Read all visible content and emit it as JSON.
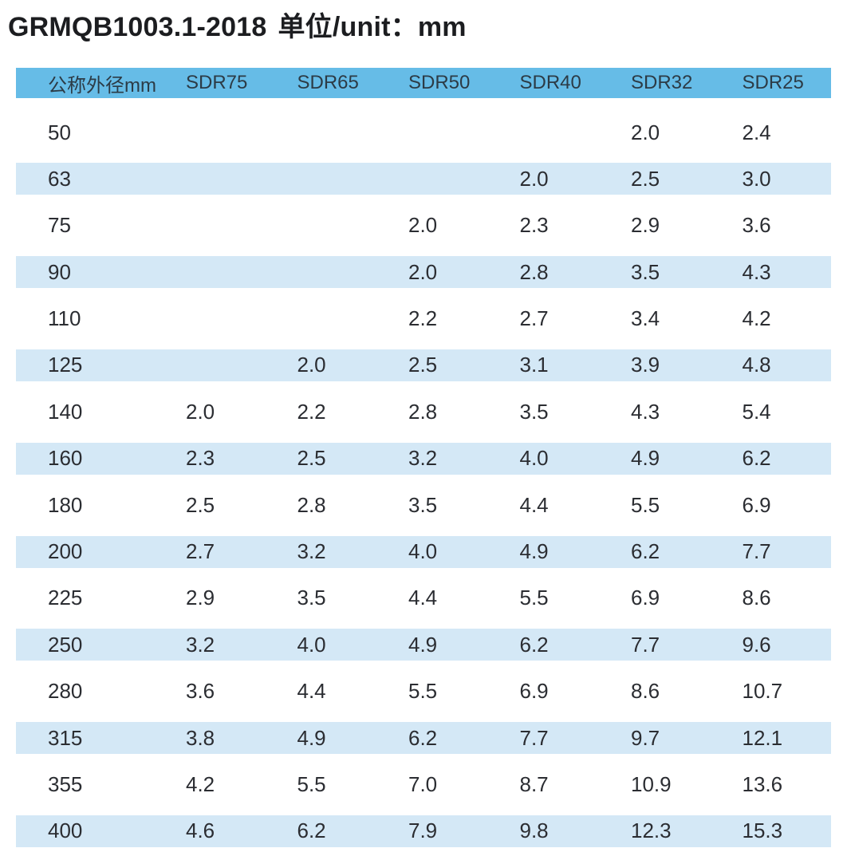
{
  "title": {
    "standard_code": "GRMQB1003.1-2018",
    "unit_label": "单位/unit：mm"
  },
  "colors": {
    "header_bg": "#66bce7",
    "stripe_bg": "#d4e8f6",
    "header_text": "#2c3b46",
    "body_text": "#2b2d32",
    "title_text": "#1c1d20"
  },
  "table": {
    "columns": [
      "公称外径mm",
      "SDR75",
      "SDR65",
      "SDR50",
      "SDR40",
      "SDR32",
      "SDR25"
    ],
    "rows": [
      {
        "dn": "50",
        "values": [
          "",
          "",
          "",
          "",
          "2.0",
          "2.4"
        ]
      },
      {
        "dn": "63",
        "values": [
          "",
          "",
          "",
          "2.0",
          "2.5",
          "3.0"
        ]
      },
      {
        "dn": "75",
        "values": [
          "",
          "",
          "2.0",
          "2.3",
          "2.9",
          "3.6"
        ]
      },
      {
        "dn": "90",
        "values": [
          "",
          "",
          "2.0",
          "2.8",
          "3.5",
          "4.3"
        ]
      },
      {
        "dn": "110",
        "values": [
          "",
          "",
          "2.2",
          "2.7",
          "3.4",
          "4.2"
        ]
      },
      {
        "dn": "125",
        "values": [
          "",
          "2.0",
          "2.5",
          "3.1",
          "3.9",
          "4.8"
        ]
      },
      {
        "dn": "140",
        "values": [
          "2.0",
          "2.2",
          "2.8",
          "3.5",
          "4.3",
          "5.4"
        ]
      },
      {
        "dn": "160",
        "values": [
          "2.3",
          "2.5",
          "3.2",
          "4.0",
          "4.9",
          "6.2"
        ]
      },
      {
        "dn": "180",
        "values": [
          "2.5",
          "2.8",
          "3.5",
          "4.4",
          "5.5",
          "6.9"
        ]
      },
      {
        "dn": "200",
        "values": [
          "2.7",
          "3.2",
          "4.0",
          "4.9",
          "6.2",
          "7.7"
        ]
      },
      {
        "dn": "225",
        "values": [
          "2.9",
          "3.5",
          "4.4",
          "5.5",
          "6.9",
          "8.6"
        ]
      },
      {
        "dn": "250",
        "values": [
          "3.2",
          "4.0",
          "4.9",
          "6.2",
          "7.7",
          "9.6"
        ]
      },
      {
        "dn": "280",
        "values": [
          "3.6",
          "4.4",
          "5.5",
          "6.9",
          "8.6",
          "10.7"
        ]
      },
      {
        "dn": "315",
        "values": [
          "3.8",
          "4.9",
          "6.2",
          "7.7",
          "9.7",
          "12.1"
        ]
      },
      {
        "dn": "355",
        "values": [
          "4.2",
          "5.5",
          "7.0",
          "8.7",
          "10.9",
          "13.6"
        ]
      },
      {
        "dn": "400",
        "values": [
          "4.6",
          "6.2",
          "7.9",
          "9.8",
          "12.3",
          "15.3"
        ]
      }
    ]
  }
}
